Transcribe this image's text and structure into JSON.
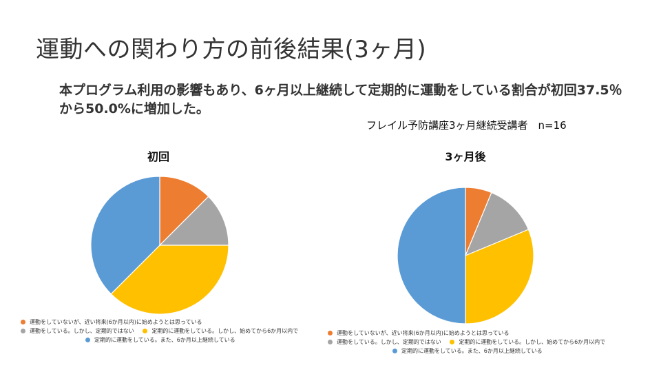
{
  "slide": {
    "title": "運動への関わり方の前後結果(3ヶ月)",
    "subtitle": "本プログラム利用の影響もあり、6ヶ月以上継続して定期的に運動をしている割合が初回37.5％から50.0%に増加した。",
    "note": "フレイル予防講座3ヶ月継続受講者　n=16"
  },
  "colors": {
    "orange": "#ED7D31",
    "gray": "#A5A5A5",
    "yellow": "#FFC000",
    "blue": "#5B9BD5"
  },
  "chart_data": [
    {
      "type": "pie",
      "title": "初回",
      "categories": [
        "運動をしていないが、近い将来(6か月以内)に始めようとは思っている",
        "運動をしている。しかし、定期的ではない",
        "定期的に運動をしている。しかし、始めてから6か月以内で",
        "定期的に運動をしている。また、6か月以上継続している"
      ],
      "values": [
        2,
        2,
        6,
        6
      ],
      "colors": [
        "#ED7D31",
        "#A5A5A5",
        "#FFC000",
        "#5B9BD5"
      ],
      "legend": "bottom"
    },
    {
      "type": "pie",
      "title": "3ヶ月後",
      "categories": [
        "運動をしていないが、近い将来(6か月以内)に始めようとは思っている",
        "運動をしている。しかし、定期的ではない",
        "定期的に運動をしている。しかし、始めてから6か月以内で",
        "定期的に運動をしている。また、6か月以上継続している"
      ],
      "values": [
        1,
        2,
        5,
        8
      ],
      "colors": [
        "#ED7D31",
        "#A5A5A5",
        "#FFC000",
        "#5B9BD5"
      ],
      "legend": "bottom"
    }
  ]
}
